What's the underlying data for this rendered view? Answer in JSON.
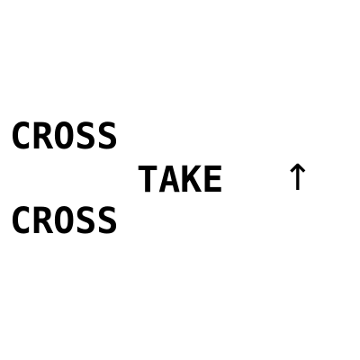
{
  "puzzle": {
    "line1": "CROSS",
    "line2": "TAKE",
    "line3": "CROSS",
    "arrow_icon": "up-arrow-icon",
    "arrow_glyph": "↑"
  }
}
